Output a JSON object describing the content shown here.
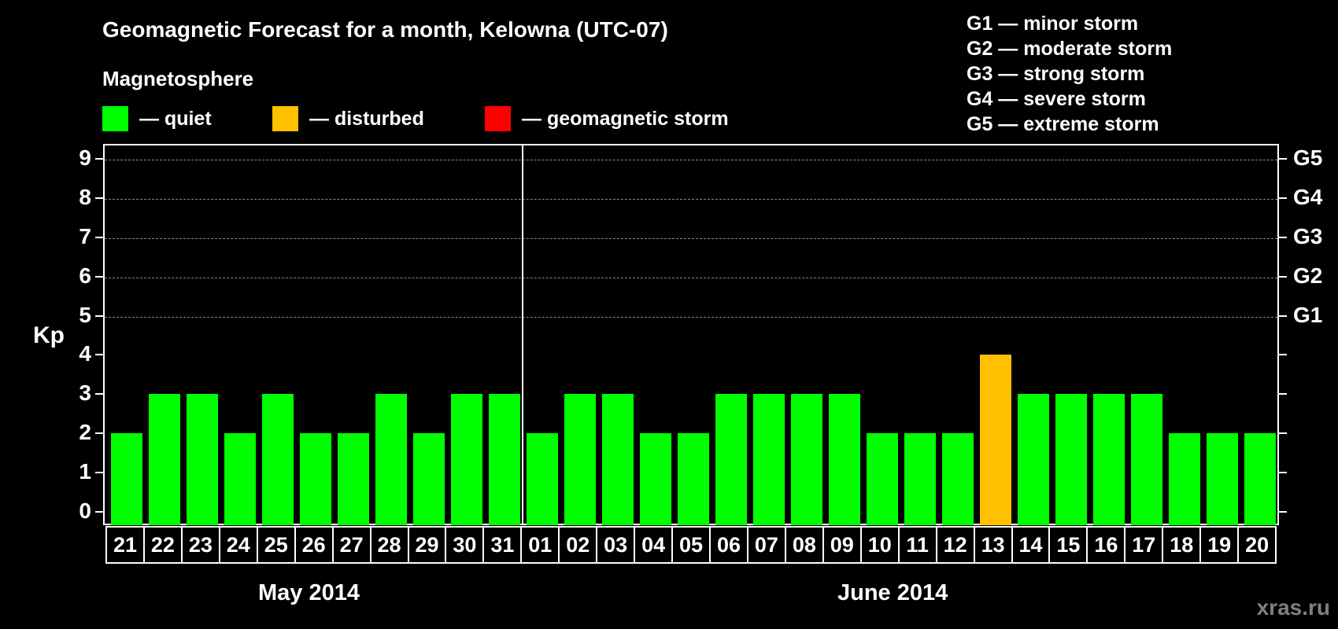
{
  "header": {
    "title": "Geomagnetic Forecast for a month, Kelowna (UTC-07)",
    "subtitle": "Magnetosphere"
  },
  "legend": [
    {
      "label": "— quiet",
      "color": "#00ff00"
    },
    {
      "label": "— disturbed",
      "color": "#ffc000"
    },
    {
      "label": "— geomagnetic storm",
      "color": "#ff0000"
    }
  ],
  "storm_levels": [
    "G1 — minor storm",
    "G2 — moderate storm",
    "G3 — strong storm",
    "G4 — severe storm",
    "G5 — extreme storm"
  ],
  "axis": {
    "ylabel": "Kp",
    "yticks": [
      "0",
      "1",
      "2",
      "3",
      "4",
      "5",
      "6",
      "7",
      "8",
      "9"
    ],
    "right_ticks": [
      {
        "kp": 5,
        "label": "G1"
      },
      {
        "kp": 6,
        "label": "G2"
      },
      {
        "kp": 7,
        "label": "G3"
      },
      {
        "kp": 8,
        "label": "G4"
      },
      {
        "kp": 9,
        "label": "G5"
      }
    ]
  },
  "months": [
    {
      "label": "May 2014"
    },
    {
      "label": "June 2014"
    }
  ],
  "watermark": "xras.ru",
  "chart_data": {
    "type": "bar",
    "title": "Geomagnetic Forecast for a month, Kelowna (UTC-07)",
    "subtitle": "Magnetosphere",
    "xlabel": "",
    "ylabel": "Kp",
    "ylim": [
      0,
      9
    ],
    "grid": "dashed horizontal at Kp 5-9",
    "legend_position": "top",
    "categories": [
      "21",
      "22",
      "23",
      "24",
      "25",
      "26",
      "27",
      "28",
      "29",
      "30",
      "31",
      "01",
      "02",
      "03",
      "04",
      "05",
      "06",
      "07",
      "08",
      "09",
      "10",
      "11",
      "12",
      "13",
      "14",
      "15",
      "16",
      "17",
      "18",
      "19",
      "20"
    ],
    "month_groups": [
      {
        "label": "May 2014",
        "from": "21",
        "to": "31"
      },
      {
        "label": "June 2014",
        "from": "01",
        "to": "20"
      }
    ],
    "values": [
      2,
      3,
      3,
      2,
      3,
      2,
      2,
      3,
      2,
      3,
      3,
      2,
      3,
      3,
      2,
      2,
      3,
      3,
      3,
      3,
      2,
      2,
      2,
      4,
      3,
      3,
      3,
      3,
      2,
      2,
      2
    ],
    "status": [
      "quiet",
      "quiet",
      "quiet",
      "quiet",
      "quiet",
      "quiet",
      "quiet",
      "quiet",
      "quiet",
      "quiet",
      "quiet",
      "quiet",
      "quiet",
      "quiet",
      "quiet",
      "quiet",
      "quiet",
      "quiet",
      "quiet",
      "quiet",
      "quiet",
      "quiet",
      "quiet",
      "disturbed",
      "quiet",
      "quiet",
      "quiet",
      "quiet",
      "quiet",
      "quiet",
      "quiet"
    ],
    "colors": {
      "quiet": "#00ff00",
      "disturbed": "#ffc000",
      "geomagnetic storm": "#ff0000"
    },
    "right_axis": {
      "5": "G1",
      "6": "G2",
      "7": "G3",
      "8": "G4",
      "9": "G5"
    }
  }
}
